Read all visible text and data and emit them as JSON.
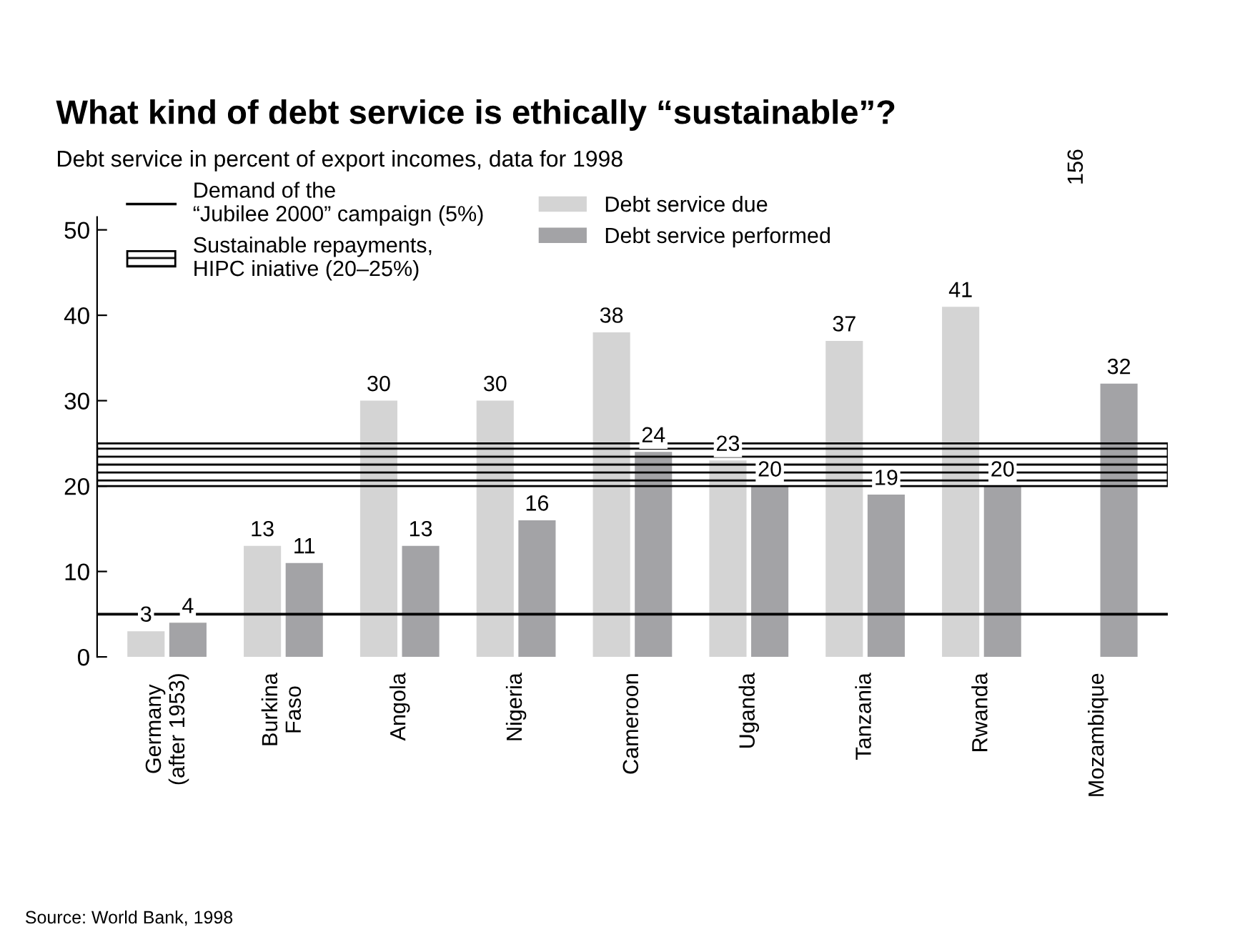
{
  "chart_data": {
    "type": "bar",
    "title": "What kind of debt service is ethically “sustainable”?",
    "subtitle": "Debt service in percent of export incomes, data for 1998",
    "categories": [
      "Germany\n(after 1953)",
      "Burkina\nFaso",
      "Angola",
      "Nigeria",
      "Cameroon",
      "Uganda",
      "Tanzania",
      "Rwanda",
      "Mozambique"
    ],
    "series": [
      {
        "name": "Debt service due",
        "color": "#d4d4d4",
        "values": [
          3,
          13,
          30,
          30,
          38,
          23,
          37,
          41,
          null
        ],
        "value_labels": [
          "3",
          "13",
          "30",
          "30",
          "38",
          "23",
          "37",
          "41",
          "156"
        ]
      },
      {
        "name": "Debt service performed",
        "color": "#a3a3a6",
        "values": [
          4,
          11,
          13,
          16,
          24,
          20,
          19,
          20,
          32
        ],
        "value_labels": [
          "4",
          "11",
          "13",
          "16",
          "24",
          "20",
          "19",
          "20",
          "32"
        ]
      }
    ],
    "ylim": [
      0,
      51.5
    ],
    "yticks": [
      0,
      10,
      20,
      30,
      40,
      50
    ],
    "grid": false,
    "legend": "top left",
    "ref_lines": [
      {
        "axis": "y",
        "value": 5,
        "label": "Demand of the\n“Jubilee 2000” campaign (5%)",
        "color": "#000000",
        "line_style": "solid"
      }
    ],
    "bands": [
      {
        "axis": "y",
        "from": 20,
        "to": 25,
        "label": "Sustainable repayments,\nHIPC iniative (20–25%)",
        "color": "#000000"
      }
    ],
    "annotations": [
      "Source: World Bank, 1998"
    ]
  }
}
